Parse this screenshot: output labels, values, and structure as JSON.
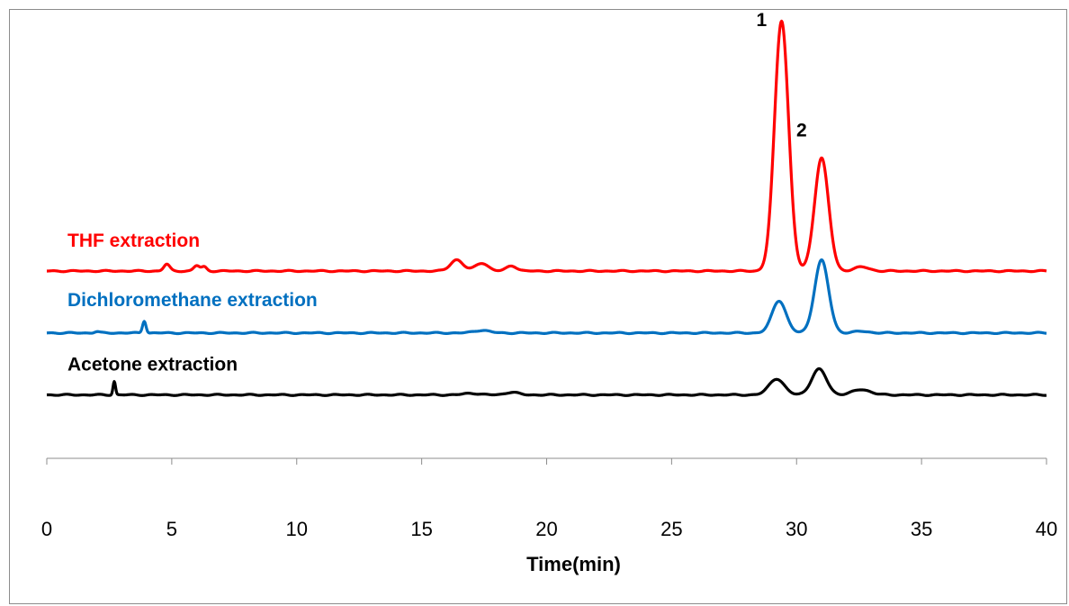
{
  "chart_data": {
    "type": "line",
    "xlabel": "Time(min)",
    "xlim": [
      0,
      40
    ],
    "x_ticks": [
      0,
      5,
      10,
      15,
      20,
      25,
      30,
      35,
      40
    ],
    "x_tick_labels": [
      "0",
      "5",
      "10",
      "15",
      "20",
      "25",
      "30",
      "35",
      "40"
    ],
    "y_axis_visible": false,
    "grid": false,
    "series": [
      {
        "name": "THF extraction",
        "color": "#ff0000",
        "baseline": 0,
        "peaks": [
          {
            "x": 4.8,
            "height": 0.25,
            "width": 0.12
          },
          {
            "x": 6.0,
            "height": 0.2,
            "width": 0.12
          },
          {
            "x": 6.3,
            "height": 0.15,
            "width": 0.1
          },
          {
            "x": 16.4,
            "height": 0.42,
            "width": 0.25
          },
          {
            "x": 17.4,
            "height": 0.3,
            "width": 0.25
          },
          {
            "x": 18.6,
            "height": 0.2,
            "width": 0.2
          },
          {
            "x": 29.4,
            "height": 9.3,
            "width": 0.28
          },
          {
            "x": 31.0,
            "height": 4.2,
            "width": 0.28
          },
          {
            "x": 32.6,
            "height": 0.15,
            "width": 0.3
          }
        ]
      },
      {
        "name": "Dichloromethane extraction",
        "color": "#0070c0",
        "baseline": -2.3,
        "peaks": [
          {
            "x": 2.0,
            "height": 0.05,
            "width": 0.1
          },
          {
            "x": 3.9,
            "height": 0.45,
            "width": 0.07
          },
          {
            "x": 17.4,
            "height": 0.1,
            "width": 0.3
          },
          {
            "x": 29.3,
            "height": 1.2,
            "width": 0.28
          },
          {
            "x": 31.0,
            "height": 2.7,
            "width": 0.28
          },
          {
            "x": 32.6,
            "height": 0.06,
            "width": 0.3
          }
        ]
      },
      {
        "name": "Acetone extraction",
        "color": "#000000",
        "baseline": -4.6,
        "peaks": [
          {
            "x": 2.7,
            "height": 0.5,
            "width": 0.05
          },
          {
            "x": 17.0,
            "height": 0.06,
            "width": 0.3
          },
          {
            "x": 18.6,
            "height": 0.1,
            "width": 0.25
          },
          {
            "x": 29.2,
            "height": 0.6,
            "width": 0.3
          },
          {
            "x": 30.9,
            "height": 0.95,
            "width": 0.3
          },
          {
            "x": 32.6,
            "height": 0.2,
            "width": 0.35
          }
        ]
      }
    ],
    "annotations": [
      {
        "text": "1",
        "x": 28.6,
        "y": 9.1
      },
      {
        "text": "2",
        "x": 30.2,
        "y": 5.0
      }
    ]
  }
}
